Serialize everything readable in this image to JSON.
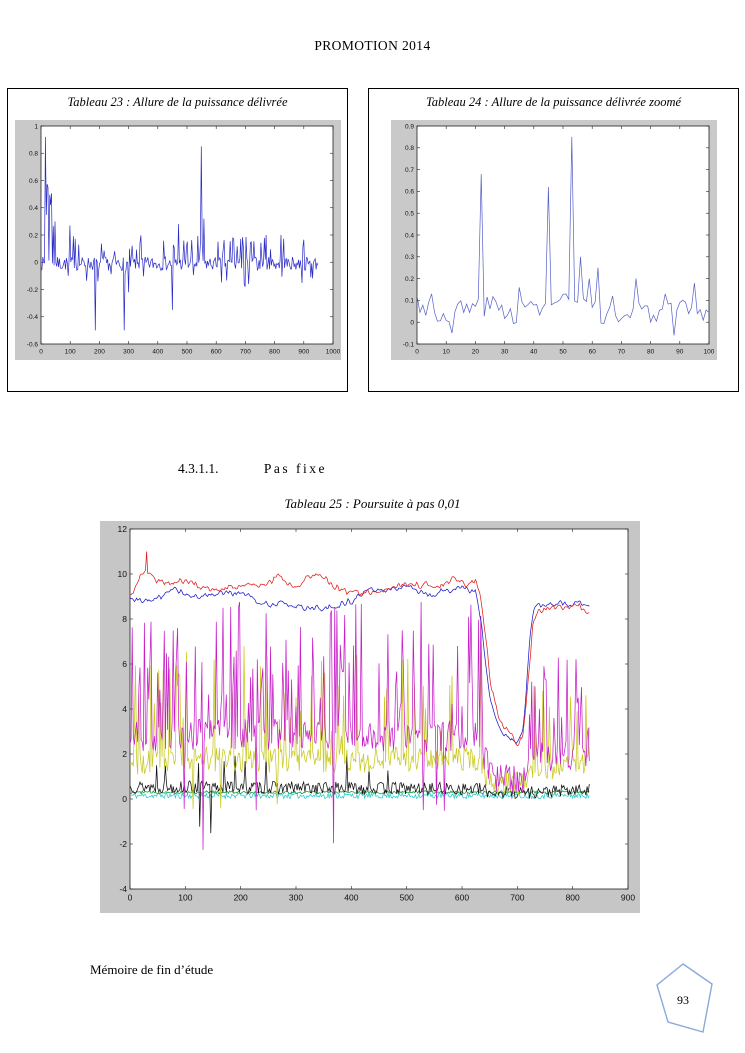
{
  "page": {
    "header": "PROMOTION 2014",
    "section": {
      "number": "4.3.1.1.",
      "title": "Pas fixe"
    },
    "footer": {
      "left": "Mémoire de fin d’étude",
      "page_number": "93"
    },
    "badge_color": "#8aa9dc"
  },
  "chart_data": [
    {
      "id": "tableau-23",
      "type": "line",
      "title": "Tableau 23 : Allure de la puissance délivrée",
      "xlabel": "",
      "ylabel": "",
      "xlim": [
        0,
        1000
      ],
      "ylim": [
        -0.6,
        1
      ],
      "xticks": [
        0,
        100,
        200,
        300,
        400,
        500,
        600,
        700,
        800,
        900,
        1000
      ],
      "yticks": [
        1,
        0.8,
        0.6,
        0.4,
        0.2,
        0,
        -0.2,
        -0.4,
        -0.6
      ],
      "grid": false,
      "legend": "none",
      "layout": {
        "margins": {
          "l": 26,
          "r": 8,
          "t": 6,
          "b": 16
        },
        "tick_font": 6.5,
        "line_width": 0.7,
        "bg": "#c9c9c9"
      },
      "series": [
        {
          "name": "puissance délivrée",
          "color": "#2a2ac8",
          "seed": 7,
          "step": 3,
          "x1": 950,
          "base": -0.01,
          "noise": 0.05,
          "rand_spikes": [
            {
              "count": 45,
              "x0": 60,
              "x1": 950,
              "ymin": 0.08,
              "ymax": 0.2
            },
            {
              "count": 16,
              "x0": 60,
              "x1": 950,
              "ymin": -0.16,
              "ymax": -0.08
            },
            {
              "count": 10,
              "x0": 3,
              "x1": 55,
              "ymin": 0.2,
              "ymax": 0.6
            }
          ],
          "spikes": [
            [
              15,
              0.92
            ],
            [
              24,
              0.55
            ],
            [
              33,
              0.42
            ],
            [
              48,
              0.3
            ],
            [
              100,
              0.27
            ],
            [
              185,
              -0.5
            ],
            [
              285,
              -0.5
            ],
            [
              300,
              -0.22
            ],
            [
              450,
              -0.35
            ],
            [
              470,
              0.28
            ],
            [
              548,
              0.85
            ],
            [
              558,
              0.32
            ],
            [
              700,
              -0.18
            ],
            [
              770,
              0.2
            ]
          ]
        }
      ]
    },
    {
      "id": "tableau-24",
      "type": "line",
      "title": "Tableau 24 : Allure de la puissance délivrée zoomé",
      "xlabel": "",
      "ylabel": "",
      "xlim": [
        0,
        100
      ],
      "ylim": [
        -0.1,
        0.9
      ],
      "xticks": [
        0,
        10,
        20,
        30,
        40,
        50,
        60,
        70,
        80,
        90,
        100
      ],
      "yticks": [
        0.9,
        0.8,
        0.7,
        0.6,
        0.5,
        0.4,
        0.3,
        0.2,
        0.1,
        0,
        -0.1
      ],
      "grid": false,
      "legend": "none",
      "layout": {
        "margins": {
          "l": 26,
          "r": 8,
          "t": 6,
          "b": 16
        },
        "tick_font": 6.5,
        "line_width": 0.7,
        "bg": "#c9c9c9"
      },
      "series": [
        {
          "name": "puissance délivrée zoomée",
          "color": "#5560c8",
          "seed": 3,
          "step": 1,
          "x1": 100,
          "base": [
            [
              0,
              0.1
            ],
            [
              8,
              0.03
            ],
            [
              15,
              0.06
            ],
            [
              25,
              0.08
            ],
            [
              32,
              0.04
            ],
            [
              40,
              0.07
            ],
            [
              50,
              0.1
            ],
            [
              57,
              0.06
            ],
            [
              63,
              0.04
            ],
            [
              70,
              0.02
            ],
            [
              78,
              0.05
            ],
            [
              85,
              0.03
            ],
            [
              92,
              0.06
            ],
            [
              100,
              0.04
            ]
          ],
          "noise": 0.05,
          "spikes": [
            [
              5,
              0.13
            ],
            [
              12,
              -0.05
            ],
            [
              22,
              0.68
            ],
            [
              35,
              0.16
            ],
            [
              45,
              0.62
            ],
            [
              53,
              0.85
            ],
            [
              56,
              0.3
            ],
            [
              59,
              0.2
            ],
            [
              62,
              0.25
            ],
            [
              67,
              0.12
            ],
            [
              75,
              0.2
            ],
            [
              85,
              0.13
            ],
            [
              88,
              -0.06
            ],
            [
              95,
              0.18
            ]
          ]
        }
      ]
    },
    {
      "id": "tableau-25",
      "type": "line",
      "title": "Tableau 25 : Poursuite à pas 0,01",
      "xlabel": "",
      "ylabel": "",
      "xlim": [
        0,
        900
      ],
      "ylim": [
        -4,
        12
      ],
      "xticks": [
        0,
        100,
        200,
        300,
        400,
        500,
        600,
        700,
        800,
        900
      ],
      "yticks": [
        12,
        10,
        8,
        6,
        4,
        2,
        0,
        -2,
        -4
      ],
      "grid": false,
      "legend": "none",
      "layout": {
        "margins": {
          "l": 30,
          "r": 12,
          "t": 8,
          "b": 24
        },
        "tick_font": 8.5,
        "line_width": 0.75,
        "bg": "#c6c6c6"
      },
      "series": [
        {
          "name": "cyan-signal",
          "color": "#2ac8c8",
          "seed": 11,
          "step": 2,
          "x1": 830,
          "base": 0.15,
          "noise": 0.13
        },
        {
          "name": "green-signal",
          "color": "#0f9a3c",
          "seed": 12,
          "step": 2,
          "x1": 830,
          "base": 0.3,
          "noise": 0.07
        },
        {
          "name": "black-signal",
          "color": "#111111",
          "seed": 13,
          "step": 2,
          "x1": 830,
          "base": [
            [
              0,
              0.55
            ],
            [
              630,
              0.45
            ],
            [
              650,
              0.3
            ],
            [
              720,
              0.3
            ],
            [
              830,
              0.4
            ]
          ],
          "noise": 0.28,
          "rand_spikes": [
            {
              "count": 10,
              "x0": 20,
              "x1": 600,
              "ymin": 1.2,
              "ymax": 2.0
            },
            {
              "count": 2,
              "x0": 120,
              "x1": 160,
              "ymin": -1.6,
              "ymax": -1.2
            }
          ]
        },
        {
          "name": "yellow-signal",
          "color": "#c8c81e",
          "seed": 14,
          "step": 2,
          "x1": 830,
          "base": [
            [
              0,
              1.6
            ],
            [
              100,
              1.8
            ],
            [
              300,
              1.7
            ],
            [
              630,
              1.8
            ],
            [
              645,
              1.0
            ],
            [
              660,
              0.7
            ],
            [
              715,
              0.7
            ],
            [
              725,
              1.3
            ],
            [
              830,
              1.6
            ]
          ],
          "noise": 0.55,
          "rand_spikes": [
            {
              "count": 60,
              "x0": 5,
              "x1": 635,
              "ymin": 2.8,
              "ymax": 6.8
            },
            {
              "count": 12,
              "x0": 720,
              "x1": 830,
              "ymin": 2.5,
              "ymax": 6.2
            },
            {
              "count": 3,
              "x0": 0,
              "x1": 600,
              "ymin": -0.6,
              "ymax": -0.2
            }
          ]
        },
        {
          "name": "magenta-signal",
          "color": "#c81ec8",
          "seed": 15,
          "step": 2,
          "x1": 830,
          "base": [
            [
              0,
              2.8
            ],
            [
              200,
              2.9
            ],
            [
              400,
              2.8
            ],
            [
              630,
              2.8
            ],
            [
              650,
              1.2
            ],
            [
              660,
              0.9
            ],
            [
              715,
              0.9
            ],
            [
              725,
              1.8
            ],
            [
              830,
              2.1
            ]
          ],
          "noise": 0.7,
          "rand_spikes": [
            {
              "count": 110,
              "x0": 3,
              "x1": 638,
              "ymin": 3.8,
              "ymax": 8.8
            },
            {
              "count": 20,
              "x0": 718,
              "x1": 830,
              "ymin": 3.0,
              "ymax": 6.6
            },
            {
              "count": 2,
              "x0": 340,
              "x1": 380,
              "ymin": -2.3,
              "ymax": -1.8
            },
            {
              "count": 1,
              "x0": 130,
              "x1": 150,
              "ymin": -2.4,
              "ymax": -2.0
            },
            {
              "count": 6,
              "x0": 0,
              "x1": 600,
              "ymin": -0.8,
              "ymax": -0.2
            }
          ]
        },
        {
          "name": "blue-signal",
          "color": "#1c1cc8",
          "seed": 16,
          "step": 2,
          "x1": 830,
          "smooth": 1,
          "base": [
            [
              0,
              8.9
            ],
            [
              40,
              8.8
            ],
            [
              80,
              9.3
            ],
            [
              120,
              9.0
            ],
            [
              160,
              9.1
            ],
            [
              200,
              9.2
            ],
            [
              240,
              8.7
            ],
            [
              280,
              8.6
            ],
            [
              320,
              8.4
            ],
            [
              360,
              8.5
            ],
            [
              400,
              8.8
            ],
            [
              430,
              9.3
            ],
            [
              470,
              9.3
            ],
            [
              510,
              9.4
            ],
            [
              540,
              9.0
            ],
            [
              570,
              9.3
            ],
            [
              600,
              9.4
            ],
            [
              625,
              9.2
            ],
            [
              635,
              7.8
            ],
            [
              650,
              4.5
            ],
            [
              665,
              3.2
            ],
            [
              680,
              2.8
            ],
            [
              695,
              2.5
            ],
            [
              705,
              2.6
            ],
            [
              712,
              3.4
            ],
            [
              718,
              5.5
            ],
            [
              724,
              7.5
            ],
            [
              730,
              8.6
            ],
            [
              780,
              8.7
            ],
            [
              830,
              8.6
            ]
          ],
          "noise": 0.22
        },
        {
          "name": "red-signal",
          "color": "#e01e1e",
          "seed": 17,
          "step": 2,
          "x1": 830,
          "smooth": 1,
          "base": [
            [
              0,
              9.0
            ],
            [
              25,
              10.2
            ],
            [
              45,
              9.8
            ],
            [
              70,
              9.6
            ],
            [
              100,
              9.7
            ],
            [
              140,
              9.3
            ],
            [
              180,
              9.4
            ],
            [
              220,
              9.5
            ],
            [
              255,
              9.7
            ],
            [
              270,
              10.0
            ],
            [
              290,
              9.4
            ],
            [
              320,
              9.8
            ],
            [
              345,
              10.1
            ],
            [
              365,
              9.5
            ],
            [
              395,
              9.2
            ],
            [
              430,
              9.2
            ],
            [
              470,
              9.3
            ],
            [
              500,
              9.6
            ],
            [
              530,
              9.5
            ],
            [
              560,
              9.4
            ],
            [
              585,
              9.8
            ],
            [
              610,
              9.5
            ],
            [
              628,
              9.6
            ],
            [
              638,
              8.2
            ],
            [
              652,
              5.0
            ],
            [
              668,
              3.4
            ],
            [
              685,
              2.9
            ],
            [
              700,
              2.5
            ],
            [
              710,
              2.8
            ],
            [
              716,
              4.0
            ],
            [
              722,
              6.0
            ],
            [
              728,
              7.8
            ],
            [
              735,
              8.4
            ],
            [
              780,
              8.5
            ],
            [
              810,
              8.6
            ],
            [
              825,
              8.2
            ],
            [
              830,
              8.5
            ]
          ],
          "noise": 0.25,
          "spikes": [
            [
              30,
              11.0
            ]
          ]
        }
      ]
    }
  ]
}
